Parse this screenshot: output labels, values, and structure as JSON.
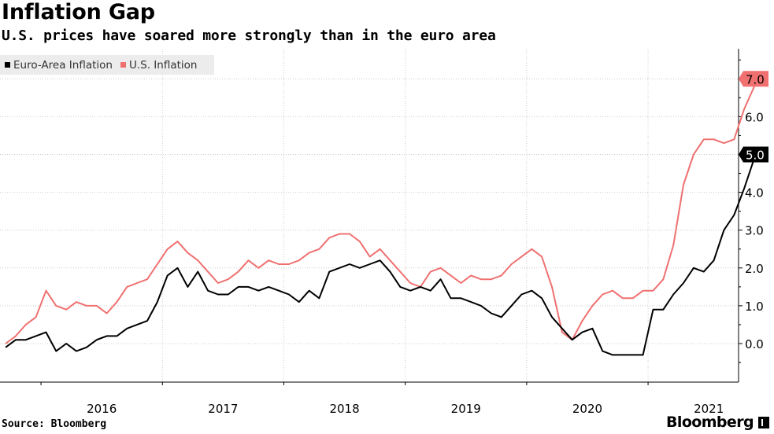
{
  "title": "Inflation Gap",
  "subtitle": "U.S. prices have soared more strongly than in the euro area",
  "source": "Source: Bloomberg",
  "brand": "Bloomberg",
  "colors": {
    "euro": "#000000",
    "us": "#f07070",
    "grid": "#cccccc"
  },
  "chart_data": {
    "type": "line",
    "title": "Inflation Gap",
    "subtitle": "U.S. prices have soared more strongly than in the euro area",
    "xlabel": "",
    "ylabel": "",
    "x_ticks": [
      "2016",
      "2017",
      "2018",
      "2019",
      "2020",
      "2021"
    ],
    "y_ticks": [
      0.0,
      1.0,
      2.0,
      3.0,
      4.0,
      5.0,
      6.0,
      7.0
    ],
    "ylim": [
      -1,
      7.7
    ],
    "xlim": [
      "2015-09",
      "2021-12"
    ],
    "grid": true,
    "legend_position": "top-left",
    "end_labels": [
      {
        "series": "U.S. Inflation",
        "label": "7.0"
      },
      {
        "series": "Euro-Area Inflation",
        "label": "5.0"
      }
    ],
    "x": [
      "2015-09",
      "2015-10",
      "2015-11",
      "2015-12",
      "2016-01",
      "2016-02",
      "2016-03",
      "2016-04",
      "2016-05",
      "2016-06",
      "2016-07",
      "2016-08",
      "2016-09",
      "2016-10",
      "2016-11",
      "2016-12",
      "2017-01",
      "2017-02",
      "2017-03",
      "2017-04",
      "2017-05",
      "2017-06",
      "2017-07",
      "2017-08",
      "2017-09",
      "2017-10",
      "2017-11",
      "2017-12",
      "2018-01",
      "2018-02",
      "2018-03",
      "2018-04",
      "2018-05",
      "2018-06",
      "2018-07",
      "2018-08",
      "2018-09",
      "2018-10",
      "2018-11",
      "2018-12",
      "2019-01",
      "2019-02",
      "2019-03",
      "2019-04",
      "2019-05",
      "2019-06",
      "2019-07",
      "2019-08",
      "2019-09",
      "2019-10",
      "2019-11",
      "2019-12",
      "2020-01",
      "2020-02",
      "2020-03",
      "2020-04",
      "2020-05",
      "2020-06",
      "2020-07",
      "2020-08",
      "2020-09",
      "2020-10",
      "2020-11",
      "2020-12",
      "2021-01",
      "2021-02",
      "2021-03",
      "2021-04",
      "2021-05",
      "2021-06",
      "2021-07",
      "2021-08",
      "2021-09",
      "2021-10",
      "2021-11",
      "2021-12"
    ],
    "series": [
      {
        "name": "Euro-Area Inflation",
        "color": "#000000",
        "values": [
          -0.1,
          0.1,
          0.1,
          0.2,
          0.3,
          -0.2,
          0.0,
          -0.2,
          -0.1,
          0.1,
          0.2,
          0.2,
          0.4,
          0.5,
          0.6,
          1.1,
          1.8,
          2.0,
          1.5,
          1.9,
          1.4,
          1.3,
          1.3,
          1.5,
          1.5,
          1.4,
          1.5,
          1.4,
          1.3,
          1.1,
          1.4,
          1.2,
          1.9,
          2.0,
          2.1,
          2.0,
          2.1,
          2.2,
          1.9,
          1.5,
          1.4,
          1.5,
          1.4,
          1.7,
          1.2,
          1.2,
          1.1,
          1.0,
          0.8,
          0.7,
          1.0,
          1.3,
          1.4,
          1.2,
          0.7,
          0.4,
          0.1,
          0.3,
          0.4,
          -0.2,
          -0.3,
          -0.3,
          -0.3,
          -0.3,
          0.9,
          0.9,
          1.3,
          1.6,
          2.0,
          1.9,
          2.2,
          3.0,
          3.4,
          4.1,
          4.9,
          5.0
        ]
      },
      {
        "name": "U.S. Inflation",
        "color": "#f07070",
        "values": [
          0.0,
          0.2,
          0.5,
          0.7,
          1.4,
          1.0,
          0.9,
          1.1,
          1.0,
          1.0,
          0.8,
          1.1,
          1.5,
          1.6,
          1.7,
          2.1,
          2.5,
          2.7,
          2.4,
          2.2,
          1.9,
          1.6,
          1.7,
          1.9,
          2.2,
          2.0,
          2.2,
          2.1,
          2.1,
          2.2,
          2.4,
          2.5,
          2.8,
          2.9,
          2.9,
          2.7,
          2.3,
          2.5,
          2.2,
          1.9,
          1.6,
          1.5,
          1.9,
          2.0,
          1.8,
          1.6,
          1.8,
          1.7,
          1.7,
          1.8,
          2.1,
          2.3,
          2.5,
          2.3,
          1.5,
          0.3,
          0.1,
          0.6,
          1.0,
          1.3,
          1.4,
          1.2,
          1.2,
          1.4,
          1.4,
          1.7,
          2.6,
          4.2,
          5.0,
          5.4,
          5.4,
          5.3,
          5.4,
          6.2,
          6.8,
          7.0
        ]
      }
    ]
  }
}
